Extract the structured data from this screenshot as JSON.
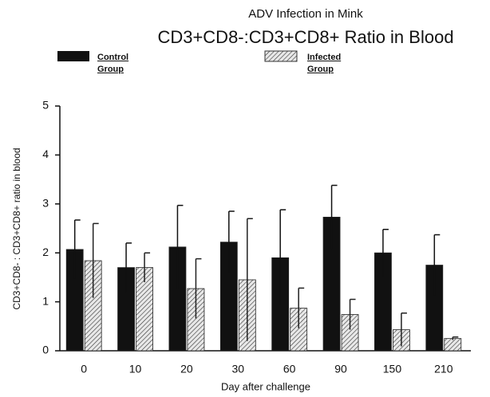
{
  "chart_data": {
    "type": "bar",
    "title": "ADV Infection in Mink",
    "subtitle": "CD3+CD8-:CD3+CD8+ Ratio in Blood",
    "x_label": "Day after challenge",
    "y_label": "CD3+CD8- : CD3+CD8+ ratio in blood",
    "categories": [
      "0",
      "10",
      "20",
      "30",
      "60",
      "90",
      "150",
      "210"
    ],
    "series": [
      {
        "name": "Control Group",
        "color": "#111111",
        "values": [
          2.07,
          1.7,
          2.12,
          2.22,
          1.9,
          2.73,
          2.0,
          1.75
        ],
        "errors": [
          0.6,
          0.5,
          0.85,
          0.63,
          0.98,
          0.65,
          0.48,
          0.62
        ]
      },
      {
        "name": "Infected Group",
        "color": "hatched",
        "values": [
          1.84,
          1.7,
          1.27,
          1.45,
          0.87,
          0.74,
          0.43,
          0.25
        ],
        "errors": [
          0.76,
          0.3,
          0.61,
          1.25,
          0.41,
          0.31,
          0.34,
          0.03
        ]
      }
    ],
    "ylim": [
      0,
      5
    ],
    "yticks": [
      0,
      1,
      2,
      3,
      4,
      5
    ],
    "grid": false
  }
}
